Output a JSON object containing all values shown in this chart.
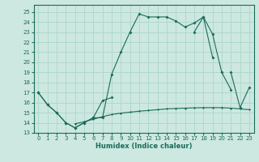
{
  "xlabel": "Humidex (Indice chaleur)",
  "bg_color": "#cde8e0",
  "grid_color": "#b0d8ce",
  "line_color": "#1a6b5a",
  "xlim": [
    -0.5,
    23.5
  ],
  "ylim": [
    13,
    25.7
  ],
  "yticks": [
    13,
    14,
    15,
    16,
    17,
    18,
    19,
    20,
    21,
    22,
    23,
    24,
    25
  ],
  "xticks": [
    0,
    1,
    2,
    3,
    4,
    5,
    6,
    7,
    8,
    9,
    10,
    11,
    12,
    13,
    14,
    15,
    16,
    17,
    18,
    19,
    20,
    21,
    22,
    23
  ],
  "line1_y": [
    17.0,
    15.8,
    15.0,
    14.0,
    13.5,
    14.0,
    14.5,
    14.5,
    18.8,
    21.0,
    23.0,
    24.8,
    24.5,
    24.5,
    24.5,
    24.1,
    23.5,
    23.9,
    24.5,
    22.8,
    19.0,
    17.3,
    null,
    null
  ],
  "line2_y": [
    17.0,
    15.8,
    15.0,
    14.0,
    13.5,
    14.0,
    14.5,
    16.2,
    16.5,
    null,
    null,
    null,
    null,
    null,
    null,
    null,
    null,
    23.0,
    24.5,
    20.5,
    null,
    19.0,
    15.5,
    17.5
  ],
  "line3_y": [
    null,
    null,
    null,
    null,
    13.9,
    14.1,
    14.35,
    14.6,
    14.82,
    14.95,
    15.05,
    15.15,
    15.22,
    15.3,
    15.38,
    15.42,
    15.45,
    15.48,
    15.5,
    15.5,
    15.5,
    15.45,
    15.38,
    15.3
  ]
}
